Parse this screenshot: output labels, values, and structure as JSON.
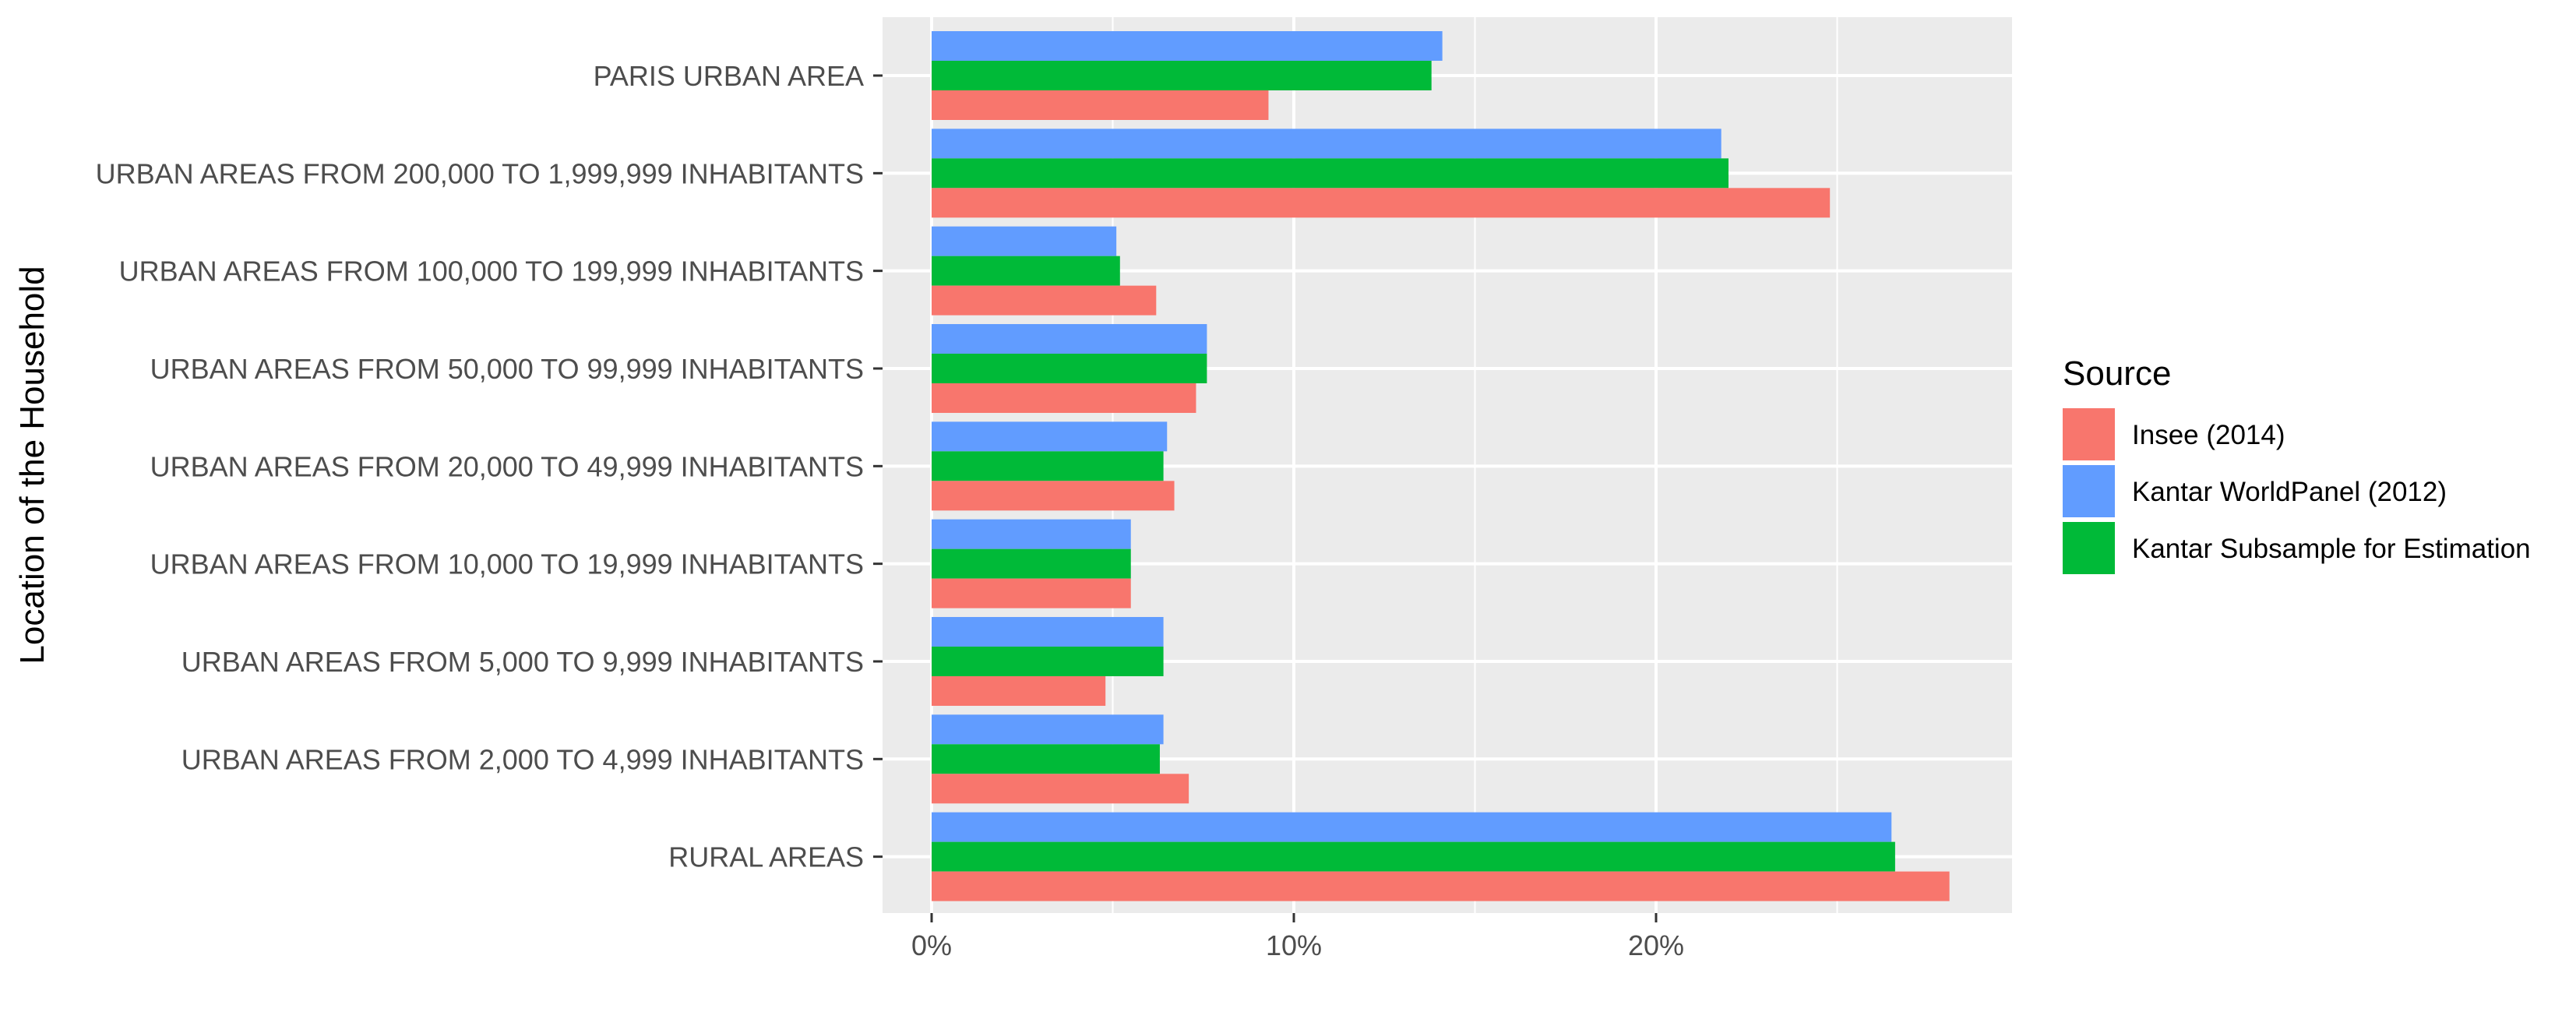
{
  "chart_data": {
    "type": "bar",
    "orientation": "horizontal",
    "title": "",
    "xlabel": "",
    "ylabel": "Location of the Household",
    "xlim": [
      0,
      0.295
    ],
    "x_ticks": [
      0,
      0.1,
      0.2
    ],
    "x_tick_labels": [
      "0%",
      "10%",
      "20%"
    ],
    "grid": true,
    "legend_position": "right",
    "legend_title": "Source",
    "categories": [
      "PARIS URBAN AREA",
      "URBAN AREAS FROM 200,000 TO 1,999,999 INHABITANTS",
      "URBAN AREAS FROM 100,000 TO 199,999 INHABITANTS",
      "URBAN AREAS FROM 50,000 TO 99,999 INHABITANTS",
      "URBAN AREAS FROM 20,000 TO 49,999 INHABITANTS",
      "URBAN AREAS FROM 10,000 TO 19,999 INHABITANTS",
      "URBAN AREAS FROM 5,000 TO 9,999 INHABITANTS",
      "URBAN AREAS FROM 2,000 TO 4,999 INHABITANTS",
      "RURAL AREAS"
    ],
    "series": [
      {
        "name": "Insee (2014)",
        "color": "#F8766D",
        "values": [
          0.093,
          0.248,
          0.062,
          0.073,
          0.067,
          0.055,
          0.048,
          0.071,
          0.281
        ]
      },
      {
        "name": "Kantar WorldPanel (2012)",
        "color": "#619CFF",
        "values": [
          0.141,
          0.218,
          0.051,
          0.076,
          0.065,
          0.055,
          0.064,
          0.064,
          0.265
        ]
      },
      {
        "name": "Kantar Subsample for Estimation",
        "color": "#00BA38",
        "values": [
          0.138,
          0.22,
          0.052,
          0.076,
          0.064,
          0.055,
          0.064,
          0.063,
          0.266
        ]
      }
    ]
  }
}
